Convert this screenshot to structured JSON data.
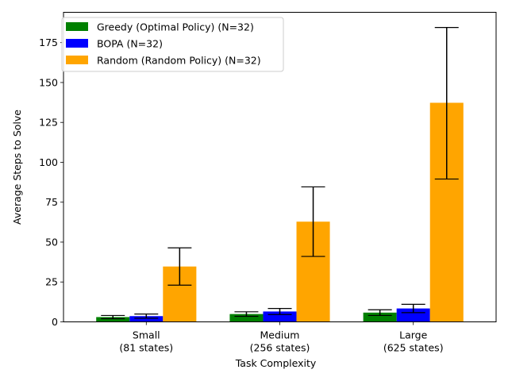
{
  "chart_data": {
    "type": "bar",
    "title": "",
    "xlabel": "Task Complexity",
    "ylabel": "Average Steps to Solve",
    "categories": [
      [
        "Small",
        "(81 states)"
      ],
      [
        "Medium",
        "(256 states)"
      ],
      [
        "Large",
        "(625 states)"
      ]
    ],
    "series": [
      {
        "name": "Greedy (Optimal Policy) (N=32)",
        "color": "#008000",
        "values": [
          3.0,
          4.9,
          5.8
        ],
        "err_low": [
          2.0,
          3.5,
          4.0
        ],
        "err_high": [
          4.0,
          6.3,
          7.6
        ]
      },
      {
        "name": "BOPA (N=32)",
        "color": "#0000ff",
        "values": [
          3.6,
          6.5,
          8.4
        ],
        "err_low": [
          2.3,
          4.6,
          5.8
        ],
        "err_high": [
          4.9,
          8.4,
          11.0
        ]
      },
      {
        "name": "Random (Random Policy) (N=32)",
        "color": "#ffa500",
        "values": [
          34.7,
          62.8,
          137.3
        ],
        "err_low": [
          23.0,
          41.0,
          89.5
        ],
        "err_high": [
          46.4,
          84.6,
          184.5
        ]
      }
    ],
    "ylim": [
      0,
      194
    ],
    "yticks": [
      0,
      25,
      50,
      75,
      100,
      125,
      150,
      175
    ],
    "grid": false,
    "legend": "top-left"
  }
}
